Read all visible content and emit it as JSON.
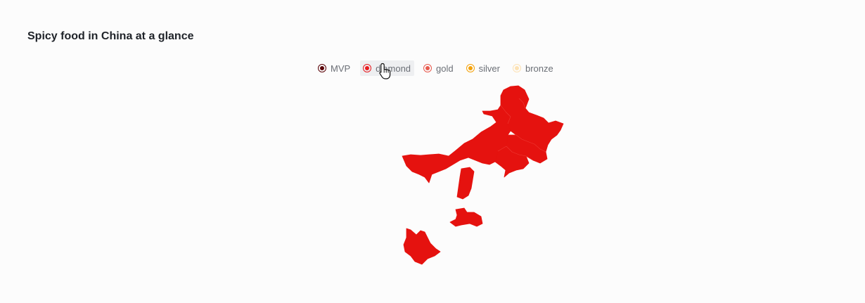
{
  "title": "Spicy food in China at a glance",
  "legend": [
    {
      "label": "MVP",
      "color": "#5a0308",
      "hover": false
    },
    {
      "label": "diamond",
      "color": "#e8191e",
      "hover": true
    },
    {
      "label": "gold",
      "color": "#e85a4e",
      "hover": false
    },
    {
      "label": "silver",
      "color": "#f5a20a",
      "hover": false
    },
    {
      "label": "bronze",
      "color": "#fde2b4",
      "hover": false
    }
  ],
  "map": {
    "highlighted_category": "diamond",
    "fill_color": "#e5120f",
    "region_icon": "china-province-shape"
  }
}
